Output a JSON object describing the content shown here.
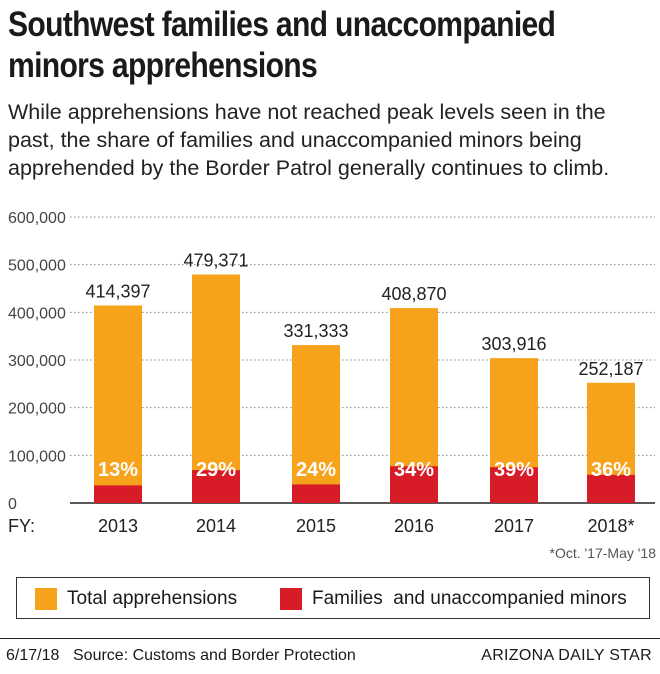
{
  "title": "Southwest families and unaccompanied minors apprehensions",
  "subtitle": "While apprehensions have not reached peak levels seen in the past, the share of families and unaccompanied minors being apprehended by the Border Patrol generally continues to climb.",
  "colors": {
    "total": "#f7a21b",
    "families": "#d71b27",
    "text": "#1a1a1a",
    "grid": "#888888"
  },
  "chart_data": {
    "type": "bar",
    "x_prefix": "FY:",
    "categories": [
      "2013",
      "2014",
      "2015",
      "2016",
      "2017",
      "2018*"
    ],
    "series": [
      {
        "name": "Total apprehensions",
        "values": [
          414397,
          479371,
          331333,
          408870,
          303916,
          252187
        ]
      },
      {
        "name": "Families  and unaccompanied minors",
        "values": [
          37000,
          69000,
          39000,
          77000,
          75000,
          59000
        ]
      }
    ],
    "value_labels": [
      "414,397",
      "479,371",
      "331,333",
      "408,870",
      "303,916",
      "252,187"
    ],
    "share_labels": [
      "13%",
      "29%",
      "24%",
      "34%",
      "39%",
      "36%"
    ],
    "y_ticks": [
      0,
      100000,
      200000,
      300000,
      400000,
      500000,
      600000
    ],
    "y_tick_labels": [
      "0",
      "100,000",
      "200,000",
      "300,000",
      "400,000",
      "500,000",
      "600,000"
    ],
    "ylim": [
      0,
      600000
    ],
    "footnote": "*Oct. '17-May '18"
  },
  "legend": {
    "total_label": "Total apprehensions",
    "families_label": "Families  and unaccompanied minors"
  },
  "footer": {
    "date": "6/17/18",
    "source": "Source: Customs and Border Protection",
    "brand": "ARIZONA DAILY STAR"
  }
}
